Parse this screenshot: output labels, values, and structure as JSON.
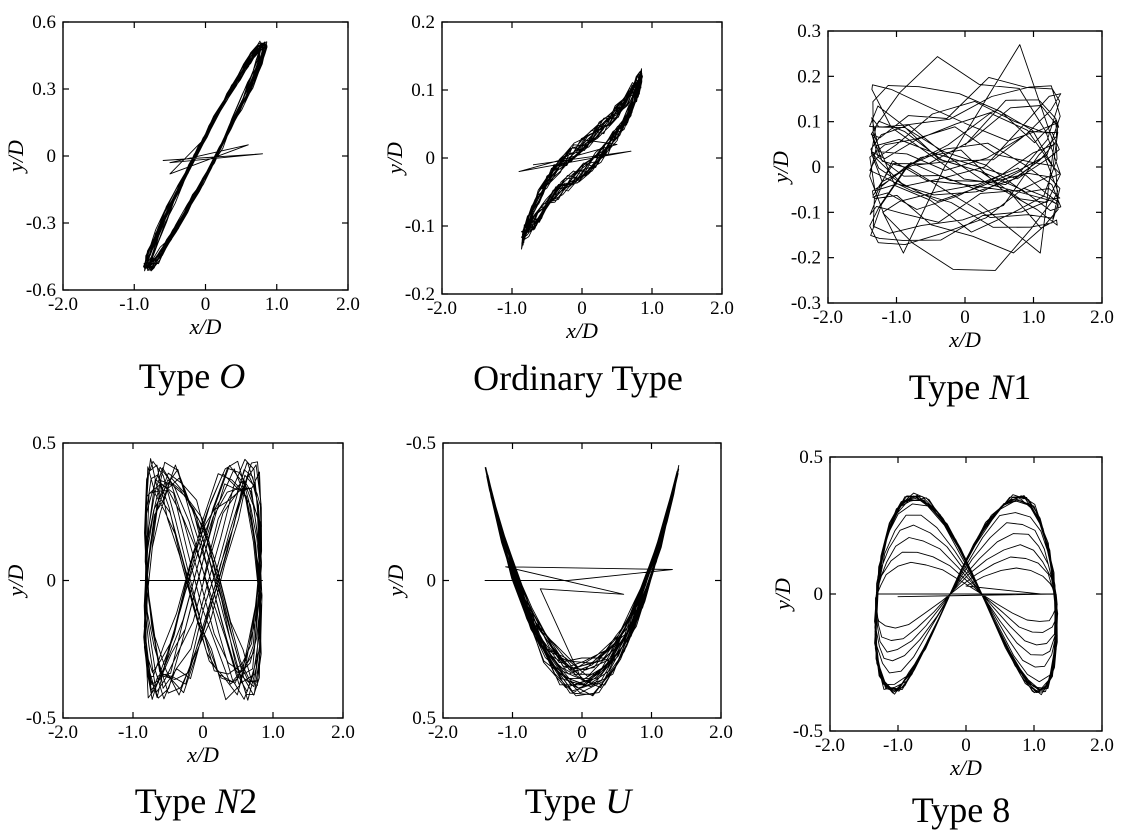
{
  "figure": {
    "panels": [
      {
        "caption_prefix": "Type ",
        "caption_italic": "O",
        "caption_suffix": ""
      },
      {
        "caption_prefix": "Ordinary Type",
        "caption_italic": "",
        "caption_suffix": ""
      },
      {
        "caption_prefix": "Type ",
        "caption_italic": "N",
        "caption_suffix": "1"
      },
      {
        "caption_prefix": "Type ",
        "caption_italic": "N",
        "caption_suffix": "2"
      },
      {
        "caption_prefix": "Type ",
        "caption_italic": "U",
        "caption_suffix": ""
      },
      {
        "caption_prefix": "Type ",
        "caption_italic": "",
        "caption_suffix": "8"
      }
    ]
  },
  "chart_data": [
    {
      "type": "line",
      "title": "Type O",
      "xlabel": "x/D",
      "ylabel": "y/D",
      "xlim": [
        -2.0,
        2.0
      ],
      "ylim": [
        -0.6,
        0.6
      ],
      "xticks": [
        "-2.0",
        "-1.0",
        "0",
        "1.0",
        "2.0"
      ],
      "xtick_values": [
        -2,
        -1,
        0,
        1,
        2
      ],
      "yticks": [
        "0.6",
        "0.3",
        "0",
        "-0.3",
        "-0.6"
      ],
      "ytick_values": [
        0.6,
        0.3,
        0,
        -0.3,
        -0.6
      ],
      "y_inverted": false,
      "grid": false,
      "pattern": "oblique_ellipse",
      "trajectory": {
        "x_amplitude": 0.85,
        "y_amplitude": 0.5,
        "transient_x_span": [
          -0.6,
          0.8
        ]
      }
    },
    {
      "type": "line",
      "title": "Ordinary Type",
      "xlabel": "x/D",
      "ylabel": "y/D",
      "xlim": [
        -2.0,
        2.0
      ],
      "ylim": [
        -0.2,
        0.2
      ],
      "xticks": [
        "-2.0",
        "-1.0",
        "0",
        "1.0",
        "2.0"
      ],
      "xtick_values": [
        -2,
        -1,
        0,
        1,
        2
      ],
      "yticks": [
        "0.2",
        "0.1",
        "0",
        "-0.1",
        "-0.2"
      ],
      "ytick_values": [
        0.2,
        0.1,
        0,
        -0.1,
        -0.2
      ],
      "y_inverted": false,
      "grid": false,
      "pattern": "s_curve_band",
      "trajectory": {
        "x_amplitude": 0.85,
        "y_amplitude": 0.12,
        "transient_x_span": [
          -0.9,
          0.7
        ]
      }
    },
    {
      "type": "line",
      "title": "Type N1",
      "xlabel": "x/D",
      "ylabel": "y/D",
      "xlim": [
        -2.0,
        2.0
      ],
      "ylim": [
        -0.3,
        0.3
      ],
      "xticks": [
        "-2.0",
        "-1.0",
        "0",
        "1.0",
        "2.0"
      ],
      "xtick_values": [
        -2,
        -1,
        0,
        1,
        2
      ],
      "yticks": [
        "0.3",
        "0.2",
        "0.1",
        "0",
        "-0.1",
        "-0.2",
        "-0.3"
      ],
      "ytick_values": [
        0.3,
        0.2,
        0.1,
        0,
        -0.1,
        -0.2,
        -0.3
      ],
      "y_inverted": false,
      "grid": false,
      "pattern": "irregular",
      "trajectory": {
        "x_amplitude": 1.4,
        "y_amplitude": 0.27
      }
    },
    {
      "type": "line",
      "title": "Type N2",
      "xlabel": "x/D",
      "ylabel": "y/D",
      "xlim": [
        -2.0,
        2.0
      ],
      "ylim": [
        -0.5,
        0.5
      ],
      "xticks": [
        "-2.0",
        "-1.0",
        "0",
        "1.0",
        "2.0"
      ],
      "xtick_values": [
        -2,
        -1,
        0,
        1,
        2
      ],
      "yticks": [
        "0.5",
        "0",
        "-0.5"
      ],
      "ytick_values": [
        0.5,
        0,
        -0.5
      ],
      "y_inverted": false,
      "grid": false,
      "pattern": "crossing_band",
      "trajectory": {
        "x_amplitude": 0.85,
        "y_amplitude": 0.45
      }
    },
    {
      "type": "line",
      "title": "Type U",
      "xlabel": "x/D",
      "ylabel": "y/D",
      "xlim": [
        -2.0,
        2.0
      ],
      "ylim": [
        -0.5,
        0.5
      ],
      "xticks": [
        "-2.0",
        "-1.0",
        "0",
        "1.0",
        "2.0"
      ],
      "xtick_values": [
        -2,
        -1,
        0,
        1,
        2
      ],
      "yticks": [
        "-0.5",
        "0",
        "0.5"
      ],
      "ytick_values": [
        -0.5,
        0,
        0.5
      ],
      "y_inverted": true,
      "grid": false,
      "pattern": "u_shape",
      "trajectory": {
        "x_amplitude": 1.4,
        "y_min": -0.42,
        "y_max": 0.4
      }
    },
    {
      "type": "line",
      "title": "Type 8",
      "xlabel": "x/D",
      "ylabel": "y/D",
      "xlim": [
        -2.0,
        2.0
      ],
      "ylim": [
        -0.5,
        0.5
      ],
      "xticks": [
        "-2.0",
        "-1.0",
        "0",
        "1.0",
        "2.0"
      ],
      "xtick_values": [
        -2,
        -1,
        0,
        1,
        2
      ],
      "yticks": [
        "0.5",
        "0",
        "-0.5"
      ],
      "ytick_values": [
        0.5,
        0,
        -0.5
      ],
      "y_inverted": false,
      "grid": false,
      "pattern": "figure_eight",
      "trajectory": {
        "x_amplitude": 1.35,
        "y_amplitude": 0.37
      }
    }
  ]
}
